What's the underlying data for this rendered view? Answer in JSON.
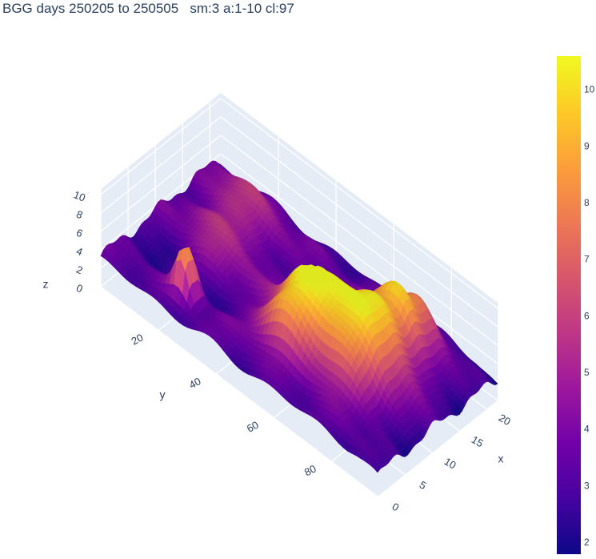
{
  "chart_data": {
    "type": "surface",
    "title": "BGG days 250205 to 250505   sm:3 a:1-10 cl:97",
    "xlabel": "x",
    "ylabel": "y",
    "zlabel": "z",
    "x_ticks": [
      0,
      5,
      10,
      15,
      20
    ],
    "y_ticks": [
      20,
      40,
      60,
      80
    ],
    "z_ticks": [
      0,
      2,
      4,
      6,
      8,
      10
    ],
    "xlim": [
      0,
      22
    ],
    "ylim": [
      0,
      96
    ],
    "zlim": [
      0,
      10.6
    ],
    "colorbar": {
      "colorscale": "Plasma",
      "range": [
        1.8,
        10.6
      ],
      "ticks": [
        2,
        3,
        4,
        5,
        6,
        7,
        8,
        9,
        10
      ]
    },
    "features": [
      {
        "x": 10.5,
        "y": 70,
        "z": 10.4,
        "sx": 4.5,
        "sy": 10
      },
      {
        "x": 17.5,
        "y": 73,
        "z": 7.0,
        "sx": 2.0,
        "sy": 7
      },
      {
        "x": 7.5,
        "y": 53,
        "z": 9.0,
        "sx": 3.0,
        "sy": 7
      },
      {
        "x": 3.0,
        "y": 24,
        "z": 8.5,
        "sx": 1.0,
        "sy": 2.5
      },
      {
        "x": 13.0,
        "y": 24,
        "z": 5.0,
        "sx": 5.0,
        "sy": 7
      },
      {
        "x": 16.0,
        "y": 12,
        "z": 5.2,
        "sx": 4.0,
        "sy": 6
      }
    ]
  }
}
